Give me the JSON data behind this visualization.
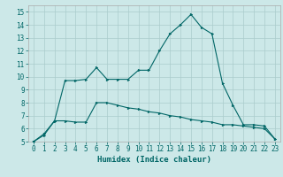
{
  "title": "",
  "xlabel": "Humidex (Indice chaleur)",
  "bg_color": "#cce8e8",
  "grid_color": "#aacccc",
  "line_color": "#006666",
  "spine_color": "#aaaaaa",
  "xlim": [
    -0.5,
    23.5
  ],
  "ylim": [
    5,
    15.5
  ],
  "yticks": [
    5,
    6,
    7,
    8,
    9,
    10,
    11,
    12,
    13,
    14,
    15
  ],
  "xticks": [
    0,
    1,
    2,
    3,
    4,
    5,
    6,
    7,
    8,
    9,
    10,
    11,
    12,
    13,
    14,
    15,
    16,
    17,
    18,
    19,
    20,
    21,
    22,
    23
  ],
  "curve1_x": [
    0,
    1,
    2,
    3,
    4,
    5,
    6,
    7,
    8,
    9,
    10,
    11,
    12,
    13,
    14,
    15,
    16,
    17,
    18,
    19,
    20,
    21,
    22,
    23
  ],
  "curve1_y": [
    5.0,
    5.6,
    6.6,
    9.7,
    9.7,
    9.8,
    10.7,
    9.8,
    9.8,
    9.8,
    10.5,
    10.5,
    12.0,
    13.3,
    14.0,
    14.8,
    13.8,
    13.3,
    9.5,
    7.8,
    6.3,
    6.3,
    6.2,
    5.2
  ],
  "curve2_x": [
    0,
    1,
    2,
    3,
    4,
    5,
    6,
    7,
    8,
    9,
    10,
    11,
    12,
    13,
    14,
    15,
    16,
    17,
    18,
    19,
    20,
    21,
    22,
    23
  ],
  "curve2_y": [
    5.0,
    5.5,
    6.6,
    6.6,
    6.5,
    6.5,
    8.0,
    8.0,
    7.8,
    7.6,
    7.5,
    7.3,
    7.2,
    7.0,
    6.9,
    6.7,
    6.6,
    6.5,
    6.3,
    6.3,
    6.2,
    6.1,
    6.0,
    5.2
  ],
  "tick_fontsize": 5.5,
  "xlabel_fontsize": 6.5,
  "marker_size": 2.0,
  "linewidth": 0.8
}
